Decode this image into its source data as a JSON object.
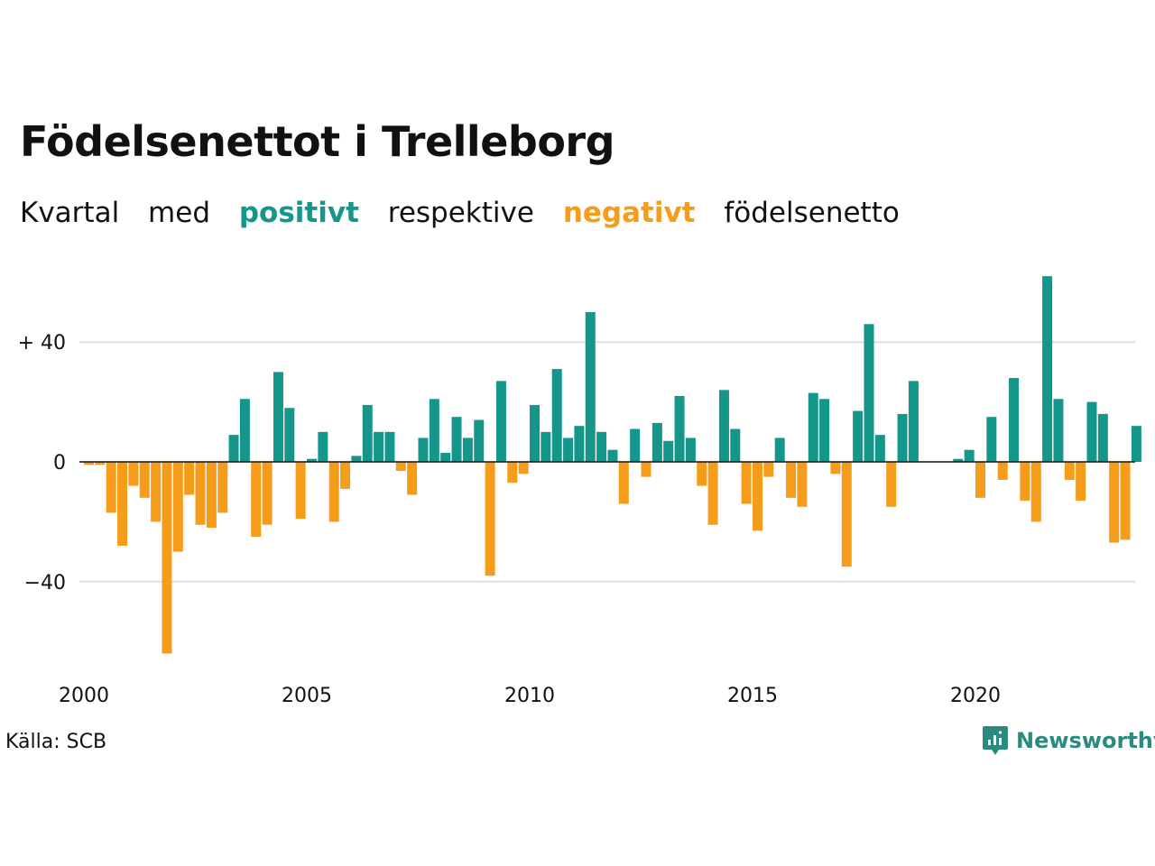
{
  "title": "Födelsenettot i Trelleborg",
  "subtitle": {
    "part1": "Kvartal",
    "part2": "med",
    "positive_word": "positivt",
    "part3": "respektive",
    "negative_word": "negativt",
    "part4": "födelsenetto"
  },
  "source": "Källa: SCB",
  "brand": "Newsworthy",
  "colors": {
    "positive": "#14968a",
    "negative": "#f59c1a",
    "grid": "#dddddd",
    "brand": "#2a8a80"
  },
  "chart_data": {
    "type": "bar",
    "x_start": "2000 Q1",
    "x_tick_labels": [
      "2000",
      "2005",
      "2010",
      "2015",
      "2020"
    ],
    "y_tick_labels": [
      "+ 40",
      "0",
      "−40"
    ],
    "y_ticks": [
      40,
      0,
      -40
    ],
    "ylim": [
      -68,
      66
    ],
    "grid": true,
    "values": [
      -1,
      -1,
      -17,
      -28,
      -8,
      -12,
      -20,
      -64,
      -30,
      -11,
      -21,
      -22,
      -17,
      9,
      21,
      -25,
      -21,
      30,
      18,
      -19,
      1,
      10,
      -20,
      -9,
      2,
      19,
      10,
      10,
      -3,
      -11,
      8,
      21,
      3,
      15,
      8,
      14,
      -38,
      27,
      -7,
      -4,
      19,
      10,
      31,
      8,
      12,
      50,
      10,
      4,
      -14,
      11,
      -5,
      13,
      7,
      22,
      8,
      -8,
      -21,
      24,
      11,
      -14,
      -23,
      -5,
      8,
      -12,
      -15,
      23,
      21,
      -4,
      -35,
      17,
      46,
      9,
      -15,
      16,
      27,
      0,
      0,
      0,
      1,
      4,
      -12,
      15,
      -6,
      28,
      -13,
      -20,
      62,
      21,
      -6,
      -13,
      20,
      16,
      -27,
      -26,
      12
    ]
  }
}
